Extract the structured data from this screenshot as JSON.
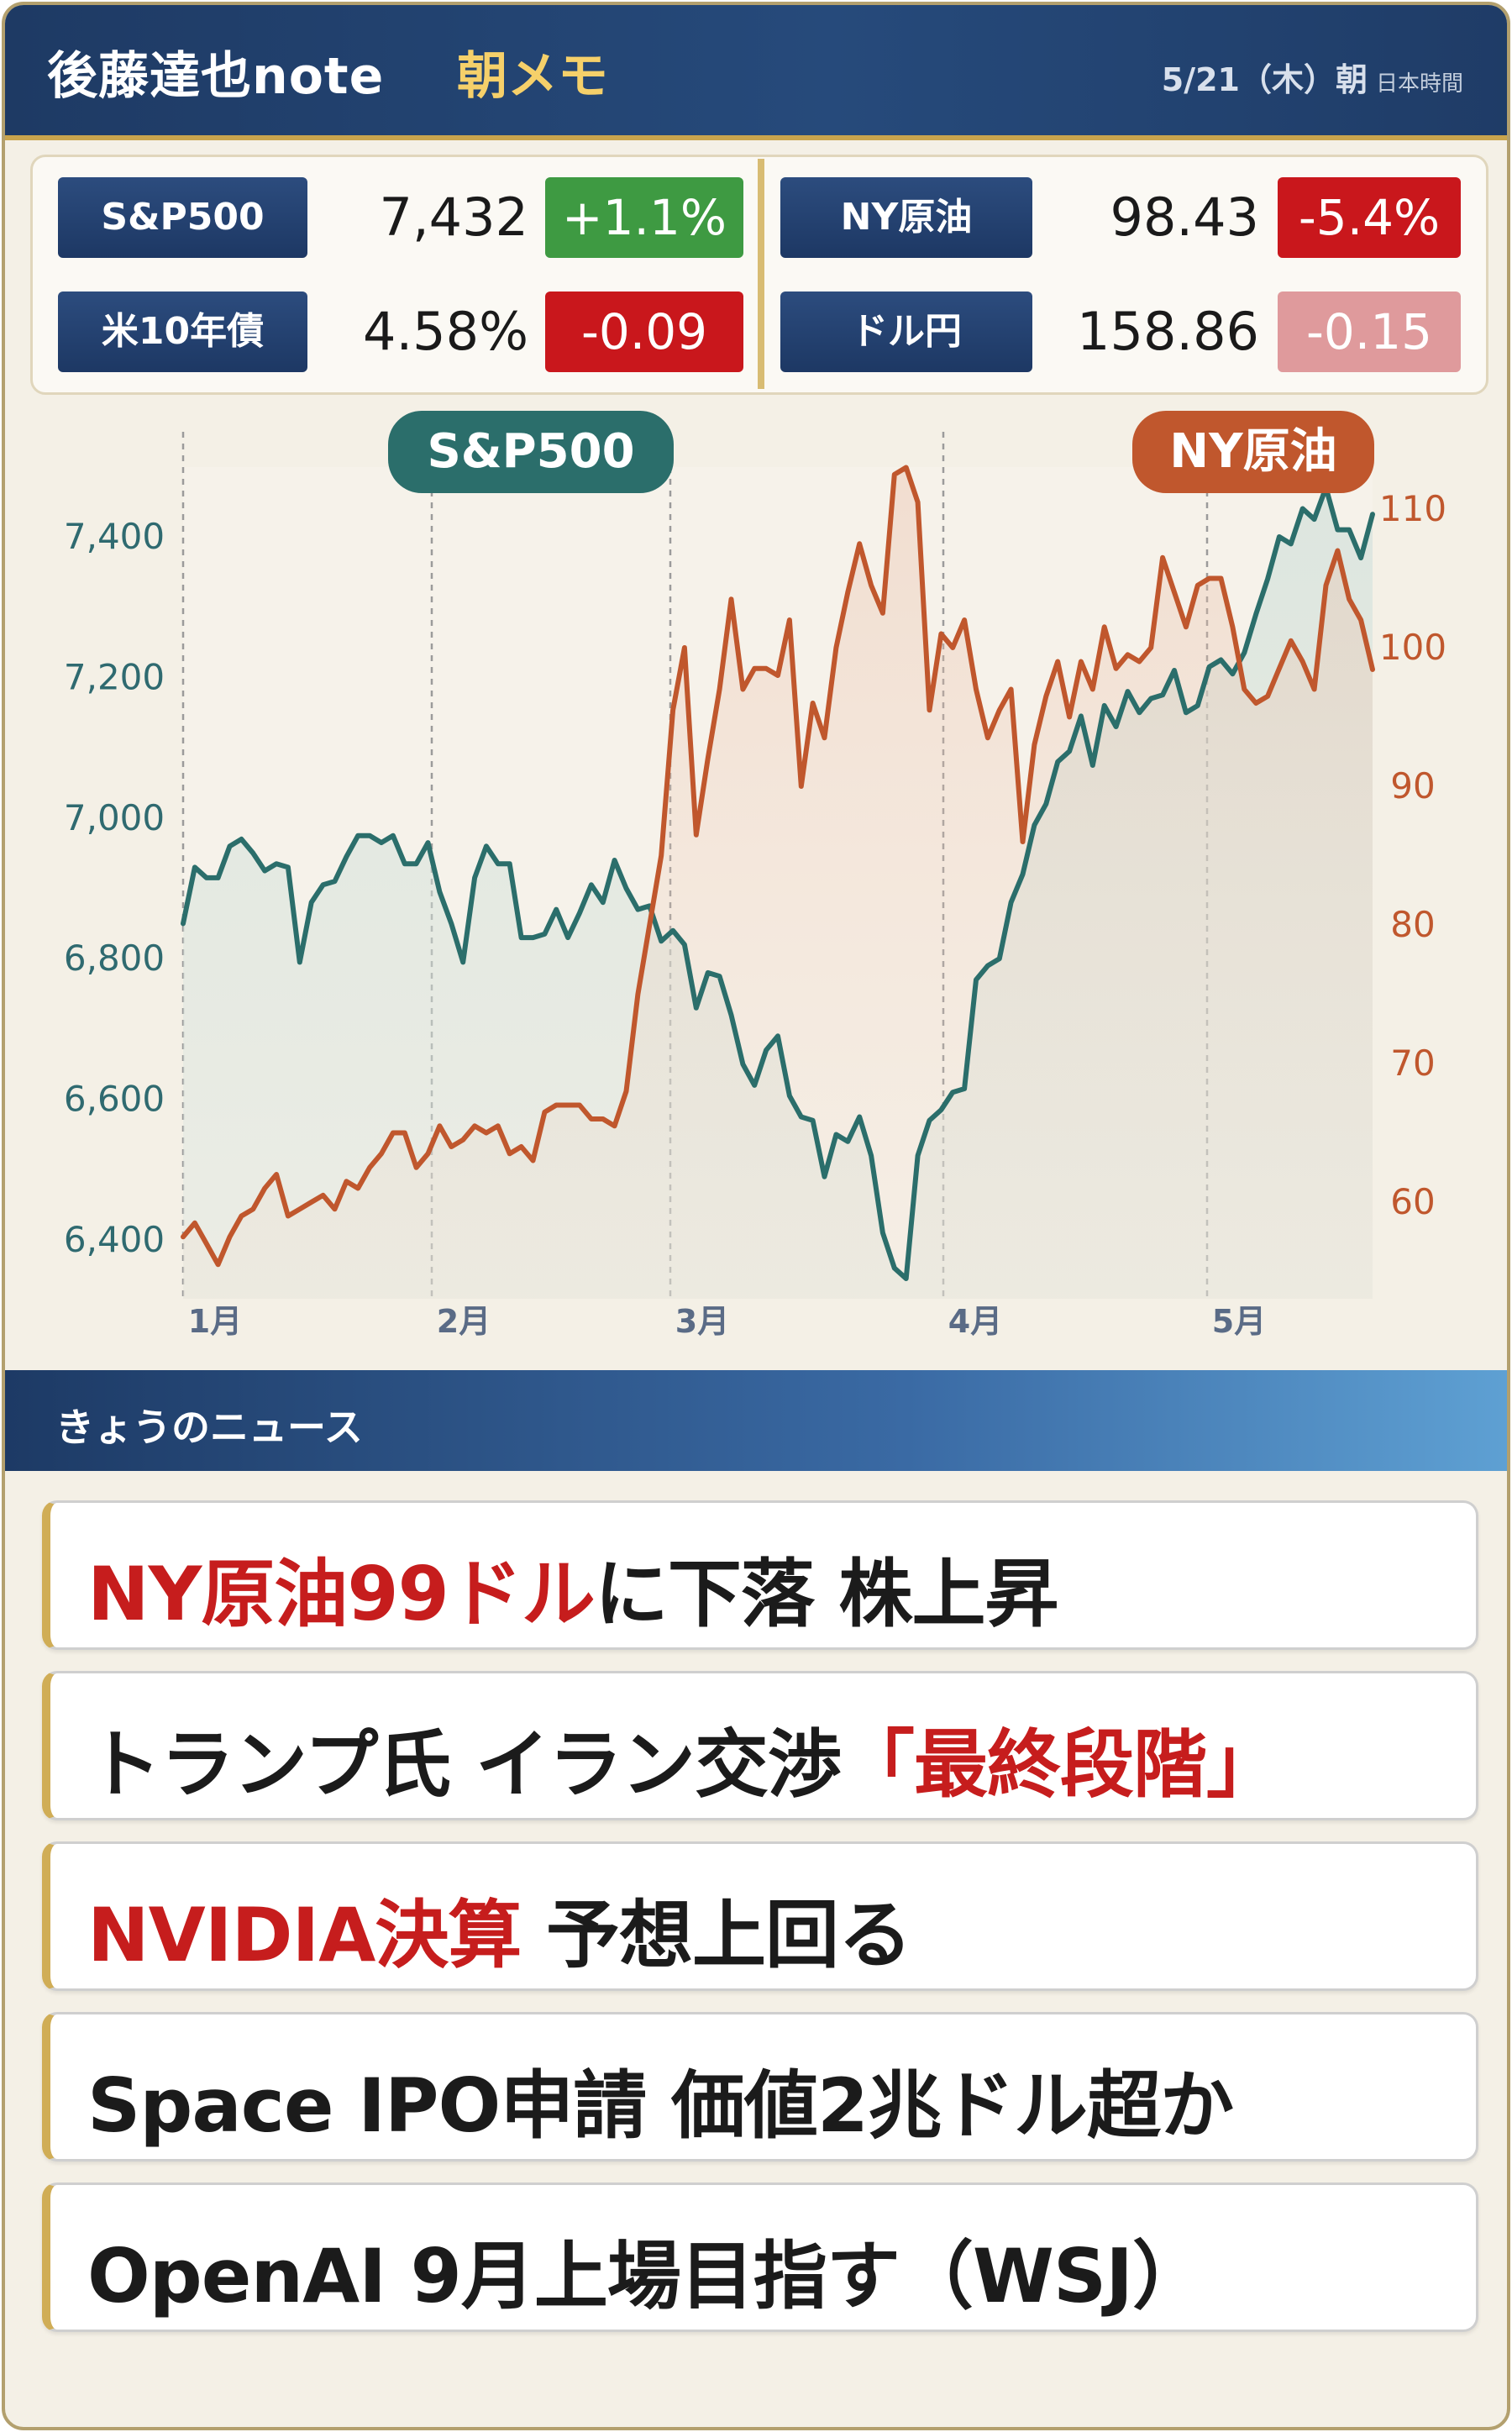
{
  "header": {
    "brand": "後藤達也note",
    "subtitle": "朝メモ",
    "date": "5/21（木）朝",
    "timezone": "日本時間"
  },
  "quotes": [
    {
      "label": "S&P500",
      "value": "7,432",
      "change": "+1.1%",
      "change_color": "#3e9a42"
    },
    {
      "label": "NY原油",
      "value": "98.43",
      "change": "-5.4%",
      "change_color": "#c9171c"
    },
    {
      "label": "米10年債",
      "value": "4.58%",
      "change": "-0.09",
      "change_color": "#c9171c"
    },
    {
      "label": "ドル円",
      "value": "158.86",
      "change": "-0.15",
      "change_color": "#df9a9c"
    }
  ],
  "chart_data": {
    "type": "line",
    "x_tick_labels": [
      "1月",
      "2月",
      "3月",
      "4月",
      "5月"
    ],
    "y_left_ticks": [
      "6,400",
      "6,600",
      "6,800",
      "7,000",
      "7,200",
      "7,400"
    ],
    "y_right_ticks": [
      "60",
      "70",
      "80",
      "90",
      "100",
      "110"
    ],
    "ylim_left": [
      6300,
      7500
    ],
    "ylim_right": [
      55,
      113
    ],
    "grid": "vertical dashed lines at month starts",
    "series": [
      {
        "name": "S&P500",
        "axis": "left",
        "color": "#2b6e6b",
        "values": [
          6850,
          6930,
          6915,
          6915,
          6960,
          6970,
          6950,
          6925,
          6935,
          6930,
          6795,
          6880,
          6905,
          6910,
          6945,
          6975,
          6975,
          6965,
          6975,
          6935,
          6935,
          6965,
          6895,
          6850,
          6795,
          6915,
          6960,
          6935,
          6935,
          6830,
          6830,
          6835,
          6870,
          6830,
          6865,
          6905,
          6880,
          6940,
          6900,
          6870,
          6875,
          6825,
          6840,
          6820,
          6730,
          6780,
          6775,
          6720,
          6650,
          6620,
          6670,
          6690,
          6605,
          6575,
          6570,
          6490,
          6550,
          6540,
          6575,
          6520,
          6410,
          6360,
          6345,
          6520,
          6570,
          6585,
          6610,
          6615,
          6770,
          6790,
          6800,
          6880,
          6920,
          6990,
          7020,
          7080,
          7095,
          7145,
          7075,
          7160,
          7130,
          7180,
          7150,
          7170,
          7175,
          7210,
          7150,
          7160,
          7215,
          7225,
          7205,
          7235,
          7290,
          7340,
          7400,
          7390,
          7440,
          7425,
          7470,
          7410,
          7410,
          7370,
          7432
        ]
      },
      {
        "name": "NY原油",
        "axis": "right",
        "color": "#c0572d",
        "values": [
          57.5,
          58.5,
          57.0,
          55.5,
          57.5,
          59.0,
          59.5,
          61.0,
          62.0,
          59.0,
          59.5,
          60.0,
          60.5,
          59.5,
          61.5,
          61.0,
          62.5,
          63.5,
          65.0,
          65.0,
          62.5,
          63.5,
          65.5,
          64.0,
          64.5,
          65.5,
          65.0,
          65.5,
          63.5,
          64.0,
          63.0,
          66.5,
          67.0,
          67.0,
          67.0,
          66.0,
          66.0,
          65.5,
          68.0,
          75.0,
          80.0,
          85.0,
          95.5,
          100.0,
          86.5,
          92.0,
          97.0,
          103.5,
          97.0,
          98.5,
          98.5,
          98.0,
          102.0,
          90.0,
          96.0,
          93.5,
          100.0,
          104.0,
          107.5,
          104.5,
          102.5,
          112.5,
          113.0,
          110.5,
          95.5,
          101.0,
          100.0,
          102.0,
          97.0,
          93.5,
          95.5,
          97.0,
          86.0,
          93.0,
          96.5,
          99.0,
          95.0,
          99.0,
          97.0,
          101.5,
          98.5,
          99.5,
          99.0,
          100.0,
          106.5,
          104.0,
          101.5,
          104.5,
          105.0,
          105.0,
          101.5,
          97.0,
          96.0,
          96.5,
          98.5,
          100.5,
          99.0,
          97.0,
          104.5,
          107.0,
          103.5,
          102.0,
          98.43
        ]
      }
    ]
  },
  "news": {
    "section_title": "きょうのニュース",
    "items": [
      {
        "highlight": "NY原油99ドル",
        "highlight_pos": "start",
        "text": "に下落 株上昇"
      },
      {
        "highlight": "「最終段階」",
        "highlight_pos": "end",
        "text": "トランプ氏 イラン交渉"
      },
      {
        "highlight": "NVIDIA決算",
        "highlight_pos": "start",
        "text": " 予想上回る"
      },
      {
        "highlight": "",
        "highlight_pos": "start",
        "text": "Space IPO申請 価値2兆ドル超か"
      },
      {
        "highlight": "",
        "highlight_pos": "start",
        "text": "OpenAI 9月上場目指す（WSJ）"
      }
    ]
  }
}
